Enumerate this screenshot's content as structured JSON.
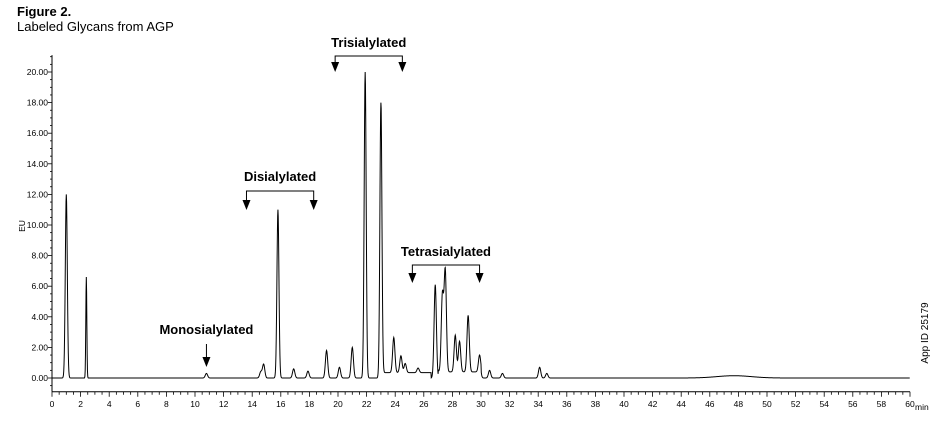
{
  "figure": {
    "title": "Figure 2.",
    "subtitle": "Labeled Glycans from AGP",
    "app_id": "App ID 25179"
  },
  "chart_data": {
    "type": "line",
    "title": "Labeled Glycans from AGP",
    "xlabel": "",
    "x_unit": "min",
    "ylabel": "EU",
    "xlim": [
      0,
      60
    ],
    "ylim": [
      -0.9,
      21.1
    ],
    "x_ticks": [
      0,
      2,
      4,
      6,
      8,
      10,
      12,
      14,
      16,
      18,
      20,
      22,
      24,
      26,
      28,
      30,
      32,
      34,
      36,
      38,
      40,
      42,
      44,
      46,
      48,
      50,
      52,
      54,
      56,
      58,
      60
    ],
    "y_ticks": [
      "0.00",
      "2.00",
      "4.00",
      "6.00",
      "8.00",
      "10.00",
      "12.00",
      "14.00",
      "16.00",
      "18.00",
      "20.00"
    ],
    "grid": false,
    "line_color": "#000000",
    "peaks": [
      {
        "x": 1.0,
        "y": 12.0
      },
      {
        "x": 2.4,
        "y": 6.6
      },
      {
        "x": 10.8,
        "y": 0.3
      },
      {
        "x": 14.6,
        "y": 0.4
      },
      {
        "x": 14.8,
        "y": 0.9
      },
      {
        "x": 15.8,
        "y": 11.0
      },
      {
        "x": 16.9,
        "y": 0.6
      },
      {
        "x": 17.9,
        "y": 0.45
      },
      {
        "x": 19.2,
        "y": 1.8
      },
      {
        "x": 20.1,
        "y": 0.7
      },
      {
        "x": 21.0,
        "y": 2.0
      },
      {
        "x": 21.9,
        "y": 20.0
      },
      {
        "x": 23.0,
        "y": 18.0
      },
      {
        "x": 23.9,
        "y": 2.3
      },
      {
        "x": 24.4,
        "y": 1.1
      },
      {
        "x": 24.7,
        "y": 0.6
      },
      {
        "x": 25.6,
        "y": 0.3
      },
      {
        "x": 26.8,
        "y": 6.1
      },
      {
        "x": 27.3,
        "y": 5.0
      },
      {
        "x": 27.5,
        "y": 6.6
      },
      {
        "x": 28.2,
        "y": 2.4
      },
      {
        "x": 28.5,
        "y": 2.0
      },
      {
        "x": 29.1,
        "y": 3.7
      },
      {
        "x": 29.9,
        "y": 1.1
      },
      {
        "x": 30.6,
        "y": 0.5
      },
      {
        "x": 31.5,
        "y": 0.3
      },
      {
        "x": 34.1,
        "y": 0.7
      },
      {
        "x": 34.6,
        "y": 0.3
      },
      {
        "x": 47.7,
        "y": 0.15
      }
    ],
    "annotations": [
      {
        "label": "Monosialylated",
        "type": "arrow",
        "x": 10.8
      },
      {
        "label": "Disialylated",
        "type": "bracket",
        "x_start": 13.6,
        "x_end": 18.3
      },
      {
        "label": "Trisialylated",
        "type": "bracket",
        "x_start": 19.8,
        "x_end": 24.5
      },
      {
        "label": "Tetrasialylated",
        "type": "bracket",
        "x_start": 25.2,
        "x_end": 29.9
      }
    ]
  }
}
